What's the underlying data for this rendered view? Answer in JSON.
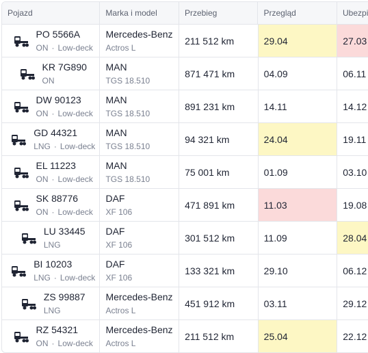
{
  "columns": [
    "Pojazd",
    "Marka i model",
    "Przebieg",
    "Przegląd",
    "Ubezpieczenie"
  ],
  "rows": [
    {
      "plate": "PO 5566A",
      "fuel": "ON",
      "type": "Low-deck",
      "brand": "Mercedes-Benz",
      "model": "Actros L",
      "mileage": "211 512 km",
      "inspection": "29.04",
      "inspection_status": "warn",
      "insurance": "27.03",
      "insurance_status": "danger"
    },
    {
      "plate": "KR 7G890",
      "fuel": "ON",
      "type": "",
      "brand": "MAN",
      "model": "TGS 18.510",
      "mileage": "871 471 km",
      "inspection": "04.09",
      "inspection_status": "",
      "insurance": "06.11",
      "insurance_status": ""
    },
    {
      "plate": "DW 90123",
      "fuel": "ON",
      "type": "Low-deck",
      "brand": "MAN",
      "model": "TGS 18.510",
      "mileage": "891 231 km",
      "inspection": "14.11",
      "inspection_status": "",
      "insurance": "14.12",
      "insurance_status": ""
    },
    {
      "plate": "GD 44321",
      "fuel": "LNG",
      "type": "Low-deck",
      "brand": "MAN",
      "model": "TGS 18.510",
      "mileage": "94 321 km",
      "inspection": "24.04",
      "inspection_status": "warn",
      "insurance": "19.11",
      "insurance_status": ""
    },
    {
      "plate": "EL 11223",
      "fuel": "ON",
      "type": "Low-deck",
      "brand": "MAN",
      "model": "TGS 18.510",
      "mileage": "75 001 km",
      "inspection": "01.09",
      "inspection_status": "",
      "insurance": "03.10",
      "insurance_status": ""
    },
    {
      "plate": "SK 88776",
      "fuel": "ON",
      "type": "Low-deck",
      "brand": "DAF",
      "model": "XF 106",
      "mileage": "471 891 km",
      "inspection": "11.03",
      "inspection_status": "danger",
      "insurance": "19.08",
      "insurance_status": ""
    },
    {
      "plate": "LU 33445",
      "fuel": "LNG",
      "type": "",
      "brand": "DAF",
      "model": "XF 106",
      "mileage": "301 512 km",
      "inspection": "11.09",
      "inspection_status": "",
      "insurance": "28.04",
      "insurance_status": "warn"
    },
    {
      "plate": "BI 10203",
      "fuel": "LNG",
      "type": "Low-deck",
      "brand": "DAF",
      "model": "XF 106",
      "mileage": "133 321 km",
      "inspection": "29.10",
      "inspection_status": "",
      "insurance": "06.12",
      "insurance_status": ""
    },
    {
      "plate": "ZS 99887",
      "fuel": "LNG",
      "type": "",
      "brand": "Mercedes-Benz",
      "model": "Actros L",
      "mileage": "451 912 km",
      "inspection": "03.11",
      "inspection_status": "",
      "insurance": "29.12",
      "insurance_status": ""
    },
    {
      "plate": "RZ 54321",
      "fuel": "ON",
      "type": "Low-deck",
      "brand": "Mercedes-Benz",
      "model": "Actros L",
      "mileage": "211 512 km",
      "inspection": "25.04",
      "inspection_status": "warn",
      "insurance": "22.12",
      "insurance_status": ""
    }
  ],
  "icons": {
    "vehicle": "truck-icon"
  },
  "colors": {
    "warn": "#fdf7c4",
    "danger": "#fbdada"
  }
}
